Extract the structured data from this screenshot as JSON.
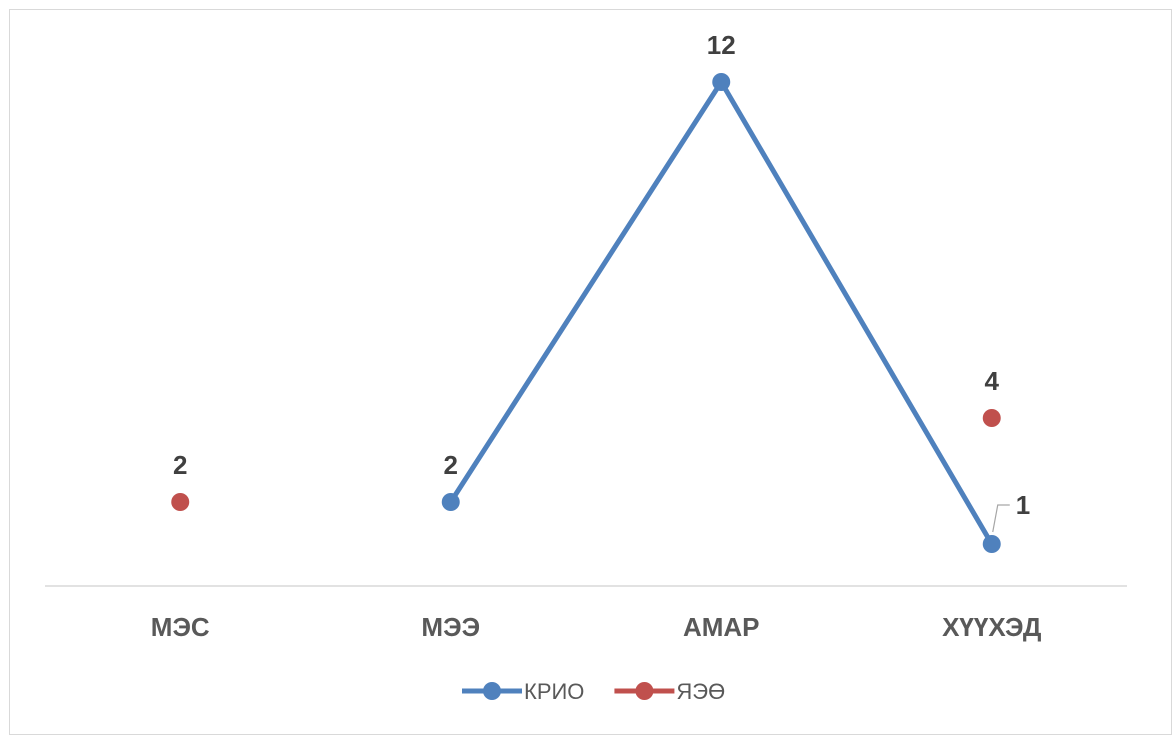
{
  "chart_data": {
    "type": "line",
    "title": "",
    "xlabel": "",
    "ylabel": "",
    "categories": [
      "МЭС",
      "МЭЭ",
      "АМАР",
      "ХҮҮХЭД"
    ],
    "ylim": [
      0,
      13
    ],
    "grid": false,
    "legend_position": "bottom",
    "series": [
      {
        "name": "КРИО",
        "values": [
          null,
          2,
          12,
          1
        ],
        "color": "#4f81bd",
        "connected": true
      },
      {
        "name": "ЯЭӨ",
        "values": [
          2,
          null,
          null,
          4
        ],
        "color": "#c0504d",
        "connected": true
      }
    ]
  }
}
